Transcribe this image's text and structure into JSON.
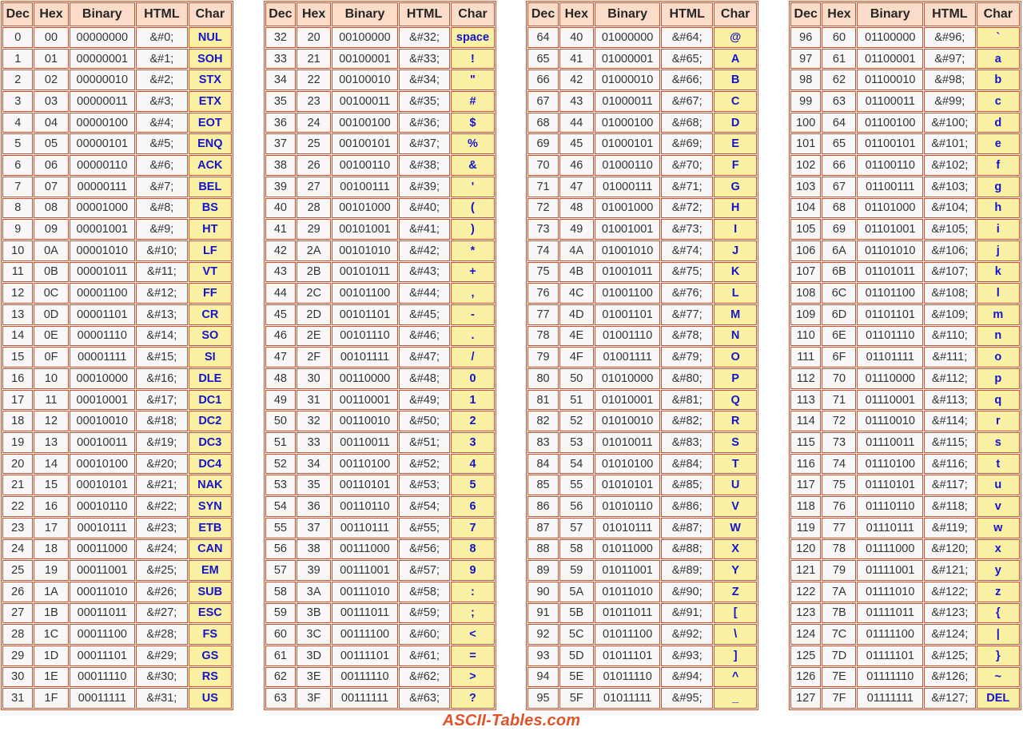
{
  "colors": {
    "border": "#c9512c",
    "header_bg": "#fadcc8",
    "header_text": "#262626",
    "cell_bg": "#f8f8f8",
    "cell_text": "#333333",
    "char_bg": "#faf1a4",
    "char_text": "#1414cc",
    "brand": "#e0532a"
  },
  "footer": {
    "brand": "ASCII-Tables.com"
  },
  "tables": [
    {
      "columns": [
        "Dec",
        "Hex",
        "Binary",
        "HTML",
        "Char"
      ],
      "rows": [
        [
          "0",
          "00",
          "00000000",
          "&#0;",
          "NUL"
        ],
        [
          "1",
          "01",
          "00000001",
          "&#1;",
          "SOH"
        ],
        [
          "2",
          "02",
          "00000010",
          "&#2;",
          "STX"
        ],
        [
          "3",
          "03",
          "00000011",
          "&#3;",
          "ETX"
        ],
        [
          "4",
          "04",
          "00000100",
          "&#4;",
          "EOT"
        ],
        [
          "5",
          "05",
          "00000101",
          "&#5;",
          "ENQ"
        ],
        [
          "6",
          "06",
          "00000110",
          "&#6;",
          "ACK"
        ],
        [
          "7",
          "07",
          "00000111",
          "&#7;",
          "BEL"
        ],
        [
          "8",
          "08",
          "00001000",
          "&#8;",
          "BS"
        ],
        [
          "9",
          "09",
          "00001001",
          "&#9;",
          "HT"
        ],
        [
          "10",
          "0A",
          "00001010",
          "&#10;",
          "LF"
        ],
        [
          "11",
          "0B",
          "00001011",
          "&#11;",
          "VT"
        ],
        [
          "12",
          "0C",
          "00001100",
          "&#12;",
          "FF"
        ],
        [
          "13",
          "0D",
          "00001101",
          "&#13;",
          "CR"
        ],
        [
          "14",
          "0E",
          "00001110",
          "&#14;",
          "SO"
        ],
        [
          "15",
          "0F",
          "00001111",
          "&#15;",
          "SI"
        ],
        [
          "16",
          "10",
          "00010000",
          "&#16;",
          "DLE"
        ],
        [
          "17",
          "11",
          "00010001",
          "&#17;",
          "DC1"
        ],
        [
          "18",
          "12",
          "00010010",
          "&#18;",
          "DC2"
        ],
        [
          "19",
          "13",
          "00010011",
          "&#19;",
          "DC3"
        ],
        [
          "20",
          "14",
          "00010100",
          "&#20;",
          "DC4"
        ],
        [
          "21",
          "15",
          "00010101",
          "&#21;",
          "NAK"
        ],
        [
          "22",
          "16",
          "00010110",
          "&#22;",
          "SYN"
        ],
        [
          "23",
          "17",
          "00010111",
          "&#23;",
          "ETB"
        ],
        [
          "24",
          "18",
          "00011000",
          "&#24;",
          "CAN"
        ],
        [
          "25",
          "19",
          "00011001",
          "&#25;",
          "EM"
        ],
        [
          "26",
          "1A",
          "00011010",
          "&#26;",
          "SUB"
        ],
        [
          "27",
          "1B",
          "00011011",
          "&#27;",
          "ESC"
        ],
        [
          "28",
          "1C",
          "00011100",
          "&#28;",
          "FS"
        ],
        [
          "29",
          "1D",
          "00011101",
          "&#29;",
          "GS"
        ],
        [
          "30",
          "1E",
          "00011110",
          "&#30;",
          "RS"
        ],
        [
          "31",
          "1F",
          "00011111",
          "&#31;",
          "US"
        ]
      ]
    },
    {
      "columns": [
        "Dec",
        "Hex",
        "Binary",
        "HTML",
        "Char"
      ],
      "rows": [
        [
          "32",
          "20",
          "00100000",
          "&#32;",
          "space"
        ],
        [
          "33",
          "21",
          "00100001",
          "&#33;",
          "!"
        ],
        [
          "34",
          "22",
          "00100010",
          "&#34;",
          "\""
        ],
        [
          "35",
          "23",
          "00100011",
          "&#35;",
          "#"
        ],
        [
          "36",
          "24",
          "00100100",
          "&#36;",
          "$"
        ],
        [
          "37",
          "25",
          "00100101",
          "&#37;",
          "%"
        ],
        [
          "38",
          "26",
          "00100110",
          "&#38;",
          "&"
        ],
        [
          "39",
          "27",
          "00100111",
          "&#39;",
          "'"
        ],
        [
          "40",
          "28",
          "00101000",
          "&#40;",
          "("
        ],
        [
          "41",
          "29",
          "00101001",
          "&#41;",
          ")"
        ],
        [
          "42",
          "2A",
          "00101010",
          "&#42;",
          "*"
        ],
        [
          "43",
          "2B",
          "00101011",
          "&#43;",
          "+"
        ],
        [
          "44",
          "2C",
          "00101100",
          "&#44;",
          ","
        ],
        [
          "45",
          "2D",
          "00101101",
          "&#45;",
          "-"
        ],
        [
          "46",
          "2E",
          "00101110",
          "&#46;",
          "."
        ],
        [
          "47",
          "2F",
          "00101111",
          "&#47;",
          "/"
        ],
        [
          "48",
          "30",
          "00110000",
          "&#48;",
          "0"
        ],
        [
          "49",
          "31",
          "00110001",
          "&#49;",
          "1"
        ],
        [
          "50",
          "32",
          "00110010",
          "&#50;",
          "2"
        ],
        [
          "51",
          "33",
          "00110011",
          "&#51;",
          "3"
        ],
        [
          "52",
          "34",
          "00110100",
          "&#52;",
          "4"
        ],
        [
          "53",
          "35",
          "00110101",
          "&#53;",
          "5"
        ],
        [
          "54",
          "36",
          "00110110",
          "&#54;",
          "6"
        ],
        [
          "55",
          "37",
          "00110111",
          "&#55;",
          "7"
        ],
        [
          "56",
          "38",
          "00111000",
          "&#56;",
          "8"
        ],
        [
          "57",
          "39",
          "00111001",
          "&#57;",
          "9"
        ],
        [
          "58",
          "3A",
          "00111010",
          "&#58;",
          ":"
        ],
        [
          "59",
          "3B",
          "00111011",
          "&#59;",
          ";"
        ],
        [
          "60",
          "3C",
          "00111100",
          "&#60;",
          "<"
        ],
        [
          "61",
          "3D",
          "00111101",
          "&#61;",
          "="
        ],
        [
          "62",
          "3E",
          "00111110",
          "&#62;",
          ">"
        ],
        [
          "63",
          "3F",
          "00111111",
          "&#63;",
          "?"
        ]
      ]
    },
    {
      "columns": [
        "Dec",
        "Hex",
        "Binary",
        "HTML",
        "Char"
      ],
      "rows": [
        [
          "64",
          "40",
          "01000000",
          "&#64;",
          "@"
        ],
        [
          "65",
          "41",
          "01000001",
          "&#65;",
          "A"
        ],
        [
          "66",
          "42",
          "01000010",
          "&#66;",
          "B"
        ],
        [
          "67",
          "43",
          "01000011",
          "&#67;",
          "C"
        ],
        [
          "68",
          "44",
          "01000100",
          "&#68;",
          "D"
        ],
        [
          "69",
          "45",
          "01000101",
          "&#69;",
          "E"
        ],
        [
          "70",
          "46",
          "01000110",
          "&#70;",
          "F"
        ],
        [
          "71",
          "47",
          "01000111",
          "&#71;",
          "G"
        ],
        [
          "72",
          "48",
          "01001000",
          "&#72;",
          "H"
        ],
        [
          "73",
          "49",
          "01001001",
          "&#73;",
          "I"
        ],
        [
          "74",
          "4A",
          "01001010",
          "&#74;",
          "J"
        ],
        [
          "75",
          "4B",
          "01001011",
          "&#75;",
          "K"
        ],
        [
          "76",
          "4C",
          "01001100",
          "&#76;",
          "L"
        ],
        [
          "77",
          "4D",
          "01001101",
          "&#77;",
          "M"
        ],
        [
          "78",
          "4E",
          "01001110",
          "&#78;",
          "N"
        ],
        [
          "79",
          "4F",
          "01001111",
          "&#79;",
          "O"
        ],
        [
          "80",
          "50",
          "01010000",
          "&#80;",
          "P"
        ],
        [
          "81",
          "51",
          "01010001",
          "&#81;",
          "Q"
        ],
        [
          "82",
          "52",
          "01010010",
          "&#82;",
          "R"
        ],
        [
          "83",
          "53",
          "01010011",
          "&#83;",
          "S"
        ],
        [
          "84",
          "54",
          "01010100",
          "&#84;",
          "T"
        ],
        [
          "85",
          "55",
          "01010101",
          "&#85;",
          "U"
        ],
        [
          "86",
          "56",
          "01010110",
          "&#86;",
          "V"
        ],
        [
          "87",
          "57",
          "01010111",
          "&#87;",
          "W"
        ],
        [
          "88",
          "58",
          "01011000",
          "&#88;",
          "X"
        ],
        [
          "89",
          "59",
          "01011001",
          "&#89;",
          "Y"
        ],
        [
          "90",
          "5A",
          "01011010",
          "&#90;",
          "Z"
        ],
        [
          "91",
          "5B",
          "01011011",
          "&#91;",
          "["
        ],
        [
          "92",
          "5C",
          "01011100",
          "&#92;",
          "\\"
        ],
        [
          "93",
          "5D",
          "01011101",
          "&#93;",
          "]"
        ],
        [
          "94",
          "5E",
          "01011110",
          "&#94;",
          "^"
        ],
        [
          "95",
          "5F",
          "01011111",
          "&#95;",
          "_"
        ]
      ]
    },
    {
      "columns": [
        "Dec",
        "Hex",
        "Binary",
        "HTML",
        "Char"
      ],
      "rows": [
        [
          "96",
          "60",
          "01100000",
          "&#96;",
          "`"
        ],
        [
          "97",
          "61",
          "01100001",
          "&#97;",
          "a"
        ],
        [
          "98",
          "62",
          "01100010",
          "&#98;",
          "b"
        ],
        [
          "99",
          "63",
          "01100011",
          "&#99;",
          "c"
        ],
        [
          "100",
          "64",
          "01100100",
          "&#100;",
          "d"
        ],
        [
          "101",
          "65",
          "01100101",
          "&#101;",
          "e"
        ],
        [
          "102",
          "66",
          "01100110",
          "&#102;",
          "f"
        ],
        [
          "103",
          "67",
          "01100111",
          "&#103;",
          "g"
        ],
        [
          "104",
          "68",
          "01101000",
          "&#104;",
          "h"
        ],
        [
          "105",
          "69",
          "01101001",
          "&#105;",
          "i"
        ],
        [
          "106",
          "6A",
          "01101010",
          "&#106;",
          "j"
        ],
        [
          "107",
          "6B",
          "01101011",
          "&#107;",
          "k"
        ],
        [
          "108",
          "6C",
          "01101100",
          "&#108;",
          "l"
        ],
        [
          "109",
          "6D",
          "01101101",
          "&#109;",
          "m"
        ],
        [
          "110",
          "6E",
          "01101110",
          "&#110;",
          "n"
        ],
        [
          "111",
          "6F",
          "01101111",
          "&#111;",
          "o"
        ],
        [
          "112",
          "70",
          "01110000",
          "&#112;",
          "p"
        ],
        [
          "113",
          "71",
          "01110001",
          "&#113;",
          "q"
        ],
        [
          "114",
          "72",
          "01110010",
          "&#114;",
          "r"
        ],
        [
          "115",
          "73",
          "01110011",
          "&#115;",
          "s"
        ],
        [
          "116",
          "74",
          "01110100",
          "&#116;",
          "t"
        ],
        [
          "117",
          "75",
          "01110101",
          "&#117;",
          "u"
        ],
        [
          "118",
          "76",
          "01110110",
          "&#118;",
          "v"
        ],
        [
          "119",
          "77",
          "01110111",
          "&#119;",
          "w"
        ],
        [
          "120",
          "78",
          "01111000",
          "&#120;",
          "x"
        ],
        [
          "121",
          "79",
          "01111001",
          "&#121;",
          "y"
        ],
        [
          "122",
          "7A",
          "01111010",
          "&#122;",
          "z"
        ],
        [
          "123",
          "7B",
          "01111011",
          "&#123;",
          "{"
        ],
        [
          "124",
          "7C",
          "01111100",
          "&#124;",
          "|"
        ],
        [
          "125",
          "7D",
          "01111101",
          "&#125;",
          "}"
        ],
        [
          "126",
          "7E",
          "01111110",
          "&#126;",
          "~"
        ],
        [
          "127",
          "7F",
          "01111111",
          "&#127;",
          "DEL"
        ]
      ]
    }
  ]
}
